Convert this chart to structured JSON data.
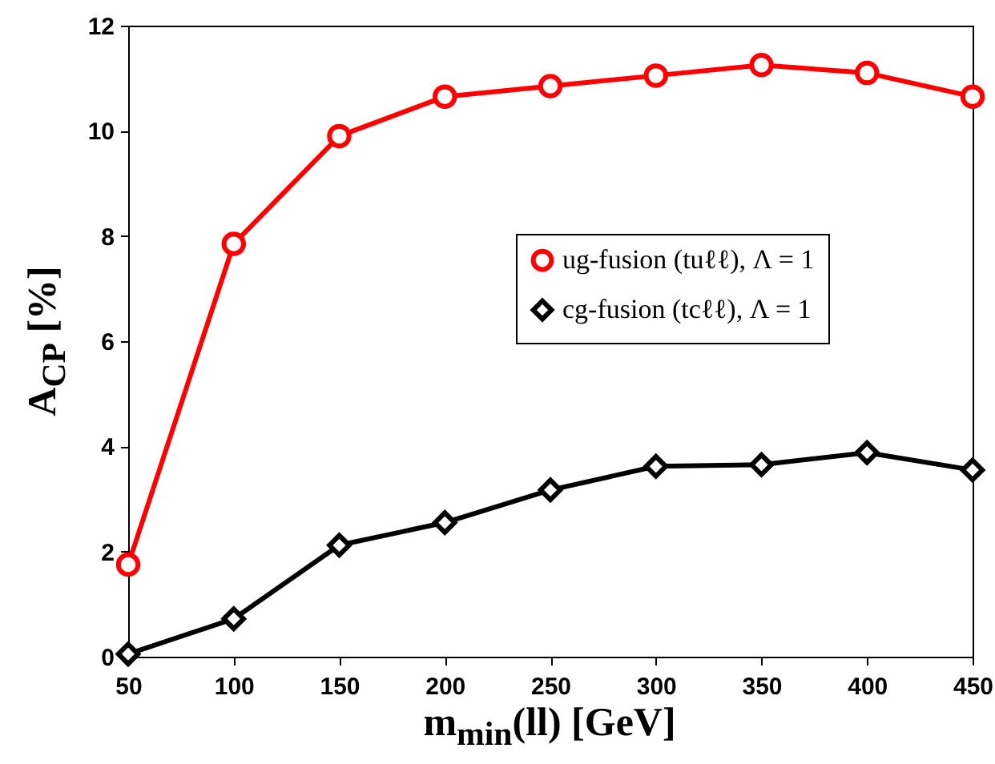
{
  "chart_data": {
    "type": "line",
    "xlabel": "m$_{min}$(ll) [GeV]",
    "ylabel": "A$_{CP}$ [%]",
    "x": [
      50,
      100,
      150,
      200,
      250,
      300,
      350,
      400,
      450
    ],
    "series": [
      {
        "name": "ug-fusion (tuℓℓ), Λ = 1",
        "color": "#ff0000",
        "marker": "circle",
        "values": [
          1.75,
          7.85,
          9.9,
          10.65,
          10.85,
          11.05,
          11.25,
          11.1,
          10.65
        ]
      },
      {
        "name": "cg-fusion (tcℓℓ), Λ = 1",
        "color": "#000000",
        "marker": "diamond",
        "values": [
          0.05,
          0.72,
          2.12,
          2.55,
          3.17,
          3.62,
          3.65,
          3.88,
          3.55
        ]
      }
    ],
    "xlim": [
      50,
      450
    ],
    "xticks": [
      50,
      100,
      150,
      200,
      250,
      300,
      350,
      400,
      450
    ],
    "ylim": [
      0,
      12
    ],
    "yticks": [
      0,
      2,
      4,
      6,
      8,
      10,
      12
    ],
    "grid": false,
    "legend": "right",
    "line_style": "solid"
  }
}
